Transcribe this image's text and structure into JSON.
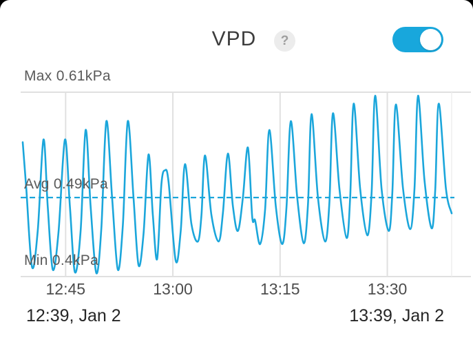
{
  "header": {
    "title": "VPD",
    "help_glyph": "?",
    "toggle_state": "on"
  },
  "colors": {
    "accent": "#1ba6db",
    "toggle_on": "#18a7dc",
    "grid": "#e0e0e0",
    "grid_light": "#ededed",
    "help_bg": "#ececec",
    "help_fg": "#9e9e9e",
    "card_bg": "#ffffff",
    "backdrop": "#000000"
  },
  "chart_data": {
    "type": "line",
    "title": "VPD",
    "ylabel": "kPa",
    "ylim": [
      0.4,
      0.61
    ],
    "grid": "on",
    "legend": "none",
    "max_value_kpa": 0.61,
    "avg_value_kpa": 0.49,
    "min_value_kpa": 0.4,
    "max_label": "Max 0.61kPa",
    "avg_label": "Avg 0.49kPa",
    "min_label": "Min 0.4kPa",
    "start_label": "12:39, Jan 2",
    "end_label": "13:39, Jan 2",
    "x_span_minutes": 60,
    "x_ticks": [
      {
        "label": "12:45",
        "minutes": 6
      },
      {
        "label": "13:00",
        "minutes": 21
      },
      {
        "label": "13:15",
        "minutes": 36
      },
      {
        "label": "13:30",
        "minutes": 51
      }
    ],
    "series": [
      {
        "name": "VPD",
        "unit": "kPa",
        "points_format": "[minutes_after_12:39, kPa]",
        "points": [
          [
            0,
            0.553
          ],
          [
            0.5,
            0.5
          ],
          [
            1.3,
            0.411
          ],
          [
            2.1,
            0.452
          ],
          [
            2.9,
            0.556
          ],
          [
            3.5,
            0.48
          ],
          [
            4.2,
            0.408
          ],
          [
            5.0,
            0.45
          ],
          [
            5.9,
            0.556
          ],
          [
            6.6,
            0.48
          ],
          [
            7.3,
            0.405
          ],
          [
            8.1,
            0.452
          ],
          [
            8.8,
            0.567
          ],
          [
            9.5,
            0.48
          ],
          [
            10.3,
            0.404
          ],
          [
            11.0,
            0.455
          ],
          [
            11.7,
            0.577
          ],
          [
            12.5,
            0.49
          ],
          [
            13.3,
            0.408
          ],
          [
            14.0,
            0.458
          ],
          [
            14.7,
            0.577
          ],
          [
            15.5,
            0.49
          ],
          [
            16.2,
            0.413
          ],
          [
            16.9,
            0.449
          ],
          [
            17.6,
            0.539
          ],
          [
            18.2,
            0.47
          ],
          [
            18.8,
            0.42
          ],
          [
            19.4,
            0.505
          ],
          [
            19.9,
            0.521
          ],
          [
            20.4,
            0.508
          ],
          [
            21.4,
            0.418
          ],
          [
            22.1,
            0.452
          ],
          [
            22.7,
            0.528
          ],
          [
            23.6,
            0.46
          ],
          [
            24.5,
            0.44
          ],
          [
            25.0,
            0.47
          ],
          [
            25.5,
            0.538
          ],
          [
            26.4,
            0.47
          ],
          [
            27.4,
            0.44
          ],
          [
            28.0,
            0.472
          ],
          [
            28.7,
            0.54
          ],
          [
            29.4,
            0.48
          ],
          [
            30.1,
            0.452
          ],
          [
            30.8,
            0.49
          ],
          [
            31.5,
            0.547
          ],
          [
            32.1,
            0.468
          ],
          [
            32.5,
            0.464
          ],
          [
            33.2,
            0.437
          ],
          [
            33.9,
            0.476
          ],
          [
            34.5,
            0.567
          ],
          [
            35.4,
            0.48
          ],
          [
            36.3,
            0.437
          ],
          [
            36.9,
            0.479
          ],
          [
            37.5,
            0.577
          ],
          [
            38.4,
            0.49
          ],
          [
            39.3,
            0.438
          ],
          [
            39.9,
            0.482
          ],
          [
            40.4,
            0.585
          ],
          [
            41.3,
            0.49
          ],
          [
            42.3,
            0.44
          ],
          [
            42.9,
            0.484
          ],
          [
            43.4,
            0.586
          ],
          [
            44.3,
            0.5
          ],
          [
            45.3,
            0.444
          ],
          [
            45.8,
            0.49
          ],
          [
            46.3,
            0.597
          ],
          [
            47.2,
            0.5
          ],
          [
            48.2,
            0.447
          ],
          [
            48.8,
            0.495
          ],
          [
            49.3,
            0.606
          ],
          [
            50.2,
            0.5
          ],
          [
            51.2,
            0.452
          ],
          [
            51.7,
            0.495
          ],
          [
            52.2,
            0.596
          ],
          [
            53.2,
            0.5
          ],
          [
            54.2,
            0.454
          ],
          [
            54.8,
            0.5
          ],
          [
            55.3,
            0.606
          ],
          [
            56.2,
            0.51
          ],
          [
            57.2,
            0.455
          ],
          [
            57.7,
            0.498
          ],
          [
            58.2,
            0.597
          ],
          [
            59.2,
            0.5
          ],
          [
            60,
            0.472
          ]
        ]
      }
    ]
  }
}
